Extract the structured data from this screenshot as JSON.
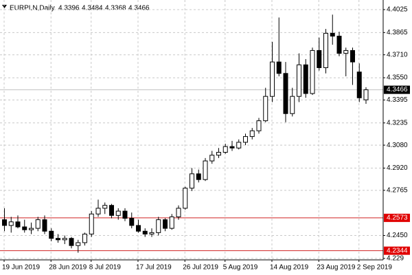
{
  "chart_data": {
    "type": "candlestick",
    "symbol": "EURPLN,Daily",
    "categories": [
      "19 Jun 2019",
      null,
      null,
      null,
      null,
      null,
      null,
      "28 Jun 2019",
      null,
      null,
      null,
      null,
      null,
      "8 Jul 2019",
      null,
      null,
      null,
      null,
      null,
      null,
      "17 Jul 2019",
      null,
      null,
      null,
      null,
      null,
      null,
      "26 Jul 2019",
      null,
      null,
      null,
      null,
      null,
      "5 Aug 2019",
      null,
      null,
      null,
      null,
      null,
      null,
      "14 Aug 2019",
      null,
      null,
      null,
      null,
      null,
      null,
      "23 Aug 2019",
      null,
      null,
      null,
      null,
      null,
      "2 Sep 2019",
      null
    ],
    "open": [
      4.256,
      4.252,
      4.2545,
      4.251,
      4.249,
      4.25,
      4.256,
      4.248,
      4.243,
      4.242,
      4.243,
      4.238,
      4.24,
      4.246,
      4.26,
      4.264,
      4.266,
      4.259,
      4.262,
      4.257,
      4.252,
      4.248,
      4.246,
      4.247,
      4.256,
      4.25,
      4.258,
      4.264,
      4.278,
      4.288,
      4.284,
      4.297,
      4.301,
      4.303,
      4.307,
      4.306,
      4.31,
      4.314,
      4.318,
      4.325,
      4.342,
      4.366,
      4.358,
      4.33,
      4.342,
      4.364,
      4.344,
      4.374,
      4.362,
      4.386,
      4.384,
      4.372,
      4.374,
      4.359,
      4.3396
    ],
    "high": [
      4.264,
      4.258,
      4.259,
      4.256,
      4.254,
      4.258,
      4.259,
      4.25,
      4.246,
      4.245,
      4.244,
      4.242,
      4.247,
      4.262,
      4.27,
      4.268,
      4.267,
      4.264,
      4.264,
      4.261,
      4.256,
      4.25,
      4.25,
      4.258,
      4.257,
      4.26,
      4.266,
      4.279,
      4.292,
      4.291,
      4.299,
      4.304,
      4.306,
      4.309,
      4.311,
      4.312,
      4.316,
      4.32,
      4.327,
      4.348,
      4.38,
      4.397,
      4.366,
      4.348,
      4.372,
      4.368,
      4.376,
      4.383,
      4.389,
      4.399,
      4.387,
      4.376,
      4.376,
      4.365,
      4.3484
    ],
    "low": [
      4.248,
      4.247,
      4.25,
      4.247,
      4.246,
      4.248,
      4.246,
      4.241,
      4.24,
      4.239,
      4.236,
      4.233,
      4.238,
      4.244,
      4.258,
      4.26,
      4.257,
      4.256,
      4.255,
      4.25,
      4.247,
      4.244,
      4.244,
      4.245,
      4.248,
      4.249,
      4.256,
      4.263,
      4.276,
      4.282,
      4.283,
      4.295,
      4.299,
      4.302,
      4.304,
      4.305,
      4.308,
      4.312,
      4.316,
      4.324,
      4.338,
      4.356,
      4.324,
      4.328,
      4.338,
      4.341,
      4.343,
      4.36,
      4.358,
      4.378,
      4.37,
      4.356,
      4.35,
      4.338,
      4.3368
    ],
    "close": [
      4.252,
      4.2545,
      4.251,
      4.249,
      4.25,
      4.256,
      4.248,
      4.243,
      4.242,
      4.243,
      4.238,
      4.24,
      4.246,
      4.26,
      4.264,
      4.266,
      4.259,
      4.262,
      4.257,
      4.252,
      4.248,
      4.246,
      4.247,
      4.256,
      4.25,
      4.258,
      4.264,
      4.278,
      4.288,
      4.284,
      4.297,
      4.301,
      4.303,
      4.307,
      4.306,
      4.31,
      4.314,
      4.318,
      4.325,
      4.342,
      4.366,
      4.358,
      4.33,
      4.342,
      4.364,
      4.344,
      4.374,
      4.362,
      4.386,
      4.384,
      4.372,
      4.374,
      4.366,
      4.341,
      4.3466
    ],
    "ylim": [
      4.228,
      4.4092
    ],
    "yticks": [
      4.4025,
      4.3865,
      {
        "value": 4.371,
        "label": "4.3710"
      },
      {
        "value": 4.355,
        "label": "4.3550"
      },
      4.3395,
      4.3235,
      {
        "value": 4.308,
        "label": "4.3080"
      },
      {
        "value": 4.292,
        "label": "4.2920"
      },
      4.2765,
      {
        "value": 4.245,
        "label": "4.2450"
      },
      4.229
    ],
    "hlines": [
      {
        "value": 4.3466,
        "color": "#c0c0c0",
        "label_bg": "#000000"
      },
      {
        "value": 4.2573,
        "color": "#d02020",
        "label_bg": "#e00000"
      },
      {
        "value": 4.2344,
        "color": "#d02020",
        "label_bg": "#e00000"
      }
    ],
    "grid": true,
    "up_color": "#ffffff",
    "down_color": "#000000"
  }
}
